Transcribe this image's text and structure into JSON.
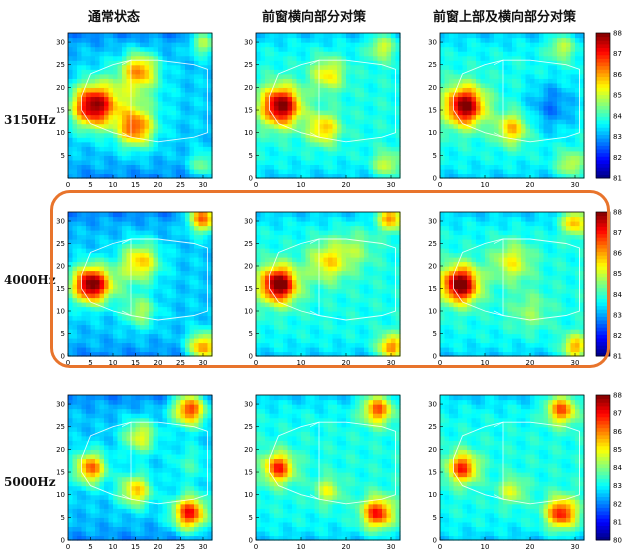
{
  "columns": [
    "通常状态",
    "前窗横向部分对策",
    "前窗上部及横向部分对策"
  ],
  "rows": [
    "3150Hz",
    "4000Hz",
    "5000Hz"
  ],
  "highlighted_row": "4000Hz",
  "colormap": "jet",
  "chart_data": [
    {
      "type": "heatmap",
      "row": "3150Hz",
      "column": "通常状态",
      "xlim": [
        0,
        32
      ],
      "ylim": [
        0,
        32
      ],
      "x_ticks": [
        0,
        5,
        10,
        15,
        20,
        25,
        30
      ],
      "y_ticks": [
        5,
        10,
        15,
        20,
        25,
        30
      ],
      "zlim": [
        81,
        88
      ]
    },
    {
      "type": "heatmap",
      "row": "3150Hz",
      "column": "前窗横向部分对策",
      "xlim": [
        0,
        32
      ],
      "ylim": [
        0,
        32
      ],
      "x_ticks": [
        0,
        10,
        20,
        30
      ],
      "y_ticks": [
        0,
        5,
        10,
        15,
        20,
        25,
        30
      ],
      "zlim": [
        81,
        88
      ]
    },
    {
      "type": "heatmap",
      "row": "3150Hz",
      "column": "前窗上部及横向部分对策",
      "xlim": [
        0,
        32
      ],
      "ylim": [
        0,
        32
      ],
      "x_ticks": [
        0,
        10,
        20,
        30
      ],
      "y_ticks": [
        0,
        5,
        10,
        15,
        20,
        25,
        30
      ],
      "zlim": [
        81,
        88
      ],
      "colorbar_ticks": [
        81,
        82,
        83,
        84,
        85,
        86,
        87,
        88
      ]
    },
    {
      "type": "heatmap",
      "row": "4000Hz",
      "column": "通常状态",
      "xlim": [
        0,
        32
      ],
      "ylim": [
        0,
        32
      ],
      "x_ticks": [
        0,
        5,
        10,
        15,
        20,
        25,
        30
      ],
      "y_ticks": [
        0,
        5,
        10,
        15,
        20,
        25,
        30
      ],
      "zlim": [
        81,
        88
      ]
    },
    {
      "type": "heatmap",
      "row": "4000Hz",
      "column": "前窗横向部分对策",
      "xlim": [
        0,
        32
      ],
      "ylim": [
        0,
        32
      ],
      "x_ticks": [
        0,
        10,
        20,
        30
      ],
      "y_ticks": [
        0,
        5,
        10,
        15,
        20,
        25,
        30
      ],
      "zlim": [
        81,
        88
      ]
    },
    {
      "type": "heatmap",
      "row": "4000Hz",
      "column": "前窗上部及横向部分对策",
      "xlim": [
        0,
        32
      ],
      "ylim": [
        0,
        32
      ],
      "x_ticks": [
        0,
        10,
        20,
        30
      ],
      "y_ticks": [
        0,
        5,
        10,
        15,
        20,
        25,
        30
      ],
      "zlim": [
        81,
        88
      ],
      "colorbar_ticks": [
        81,
        82,
        83,
        84,
        85,
        86,
        87,
        88
      ]
    },
    {
      "type": "heatmap",
      "row": "5000Hz",
      "column": "通常状态",
      "xlim": [
        0,
        32
      ],
      "ylim": [
        0,
        32
      ],
      "x_ticks": [
        0,
        5,
        10,
        15,
        20,
        25,
        30
      ],
      "y_ticks": [
        0,
        5,
        10,
        15,
        20,
        25,
        30
      ],
      "zlim": [
        80,
        88
      ]
    },
    {
      "type": "heatmap",
      "row": "5000Hz",
      "column": "前窗横向部分对策",
      "xlim": [
        0,
        32
      ],
      "ylim": [
        0,
        32
      ],
      "x_ticks": [
        0,
        10,
        20,
        30
      ],
      "y_ticks": [
        0,
        5,
        10,
        15,
        20,
        25,
        30
      ],
      "zlim": [
        80,
        88
      ]
    },
    {
      "type": "heatmap",
      "row": "5000Hz",
      "column": "前窗上部及横向部分对策",
      "xlim": [
        0,
        32
      ],
      "ylim": [
        0,
        32
      ],
      "x_ticks": [
        0,
        10,
        20,
        30
      ],
      "y_ticks": [
        0,
        5,
        10,
        15,
        20,
        25,
        30
      ],
      "zlim": [
        80,
        88
      ],
      "colorbar_ticks": [
        80,
        81,
        82,
        83,
        84,
        85,
        86,
        87,
        88
      ]
    }
  ]
}
